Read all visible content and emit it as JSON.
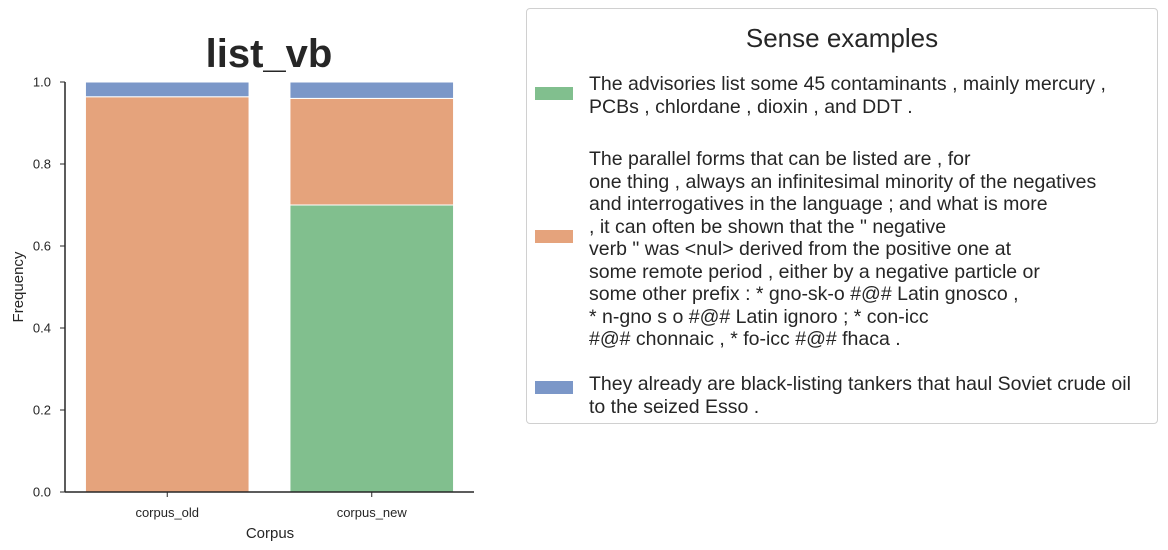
{
  "chart_data": {
    "type": "bar",
    "stacked": true,
    "title": "list_vb",
    "xlabel": "Corpus",
    "ylabel": "Frequency",
    "ylim": [
      0,
      1.0
    ],
    "yticks": [
      "0.0",
      "0.2",
      "0.4",
      "0.6",
      "0.8",
      "1.0"
    ],
    "categories": [
      "corpus_old",
      "corpus_new"
    ],
    "series": [
      {
        "color": "#81bf8e",
        "values": [
          0.0,
          0.7
        ]
      },
      {
        "color": "#e5a37c",
        "values": [
          0.964,
          0.26
        ]
      },
      {
        "color": "#7b97c8",
        "values": [
          0.036,
          0.04
        ]
      }
    ],
    "legend": {
      "title": "Sense examples",
      "placement": "right",
      "entries": [
        {
          "color": "#81bf8e",
          "text": "The advisories list some 45 contaminants , mainly mercury ,\nPCBs , chlordane , dioxin , and DDT ."
        },
        {
          "color": "#e5a37c",
          "text": "The parallel forms that can be listed are , for\none thing , always an infinitesimal minority of the negatives\nand interrogatives in the language ; and what is more\n, it can often be shown that the \" negative\nverb \" was <nul> derived from the positive one at\nsome remote period , either by a negative particle or\nsome other prefix : * gno-sk-o #@# Latin gnosco ,\n* n-gno s o #@# Latin ignoro ; * con-icc\n#@# chonnaic , * fo-icc #@# fhaca ."
        },
        {
          "color": "#7b97c8",
          "text": "They already are black-listing tankers that haul Soviet crude oil\nto the seized Esso ."
        }
      ]
    }
  }
}
